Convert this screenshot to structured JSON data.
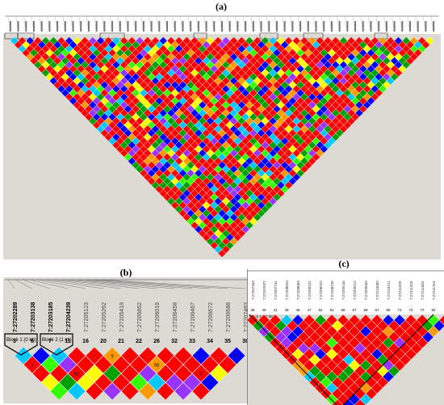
{
  "labels": {
    "a": "(a)",
    "b": "(b)",
    "c": "(c)"
  },
  "colors": {
    "background": "#ffffff",
    "panel_grey": "#dcdad3",
    "ld_red": "#ff0000",
    "ld_green": "#00a000",
    "ld_blue": "#0000ff",
    "ld_yellow": "#ffff00",
    "ld_cyan": "#00c8ff",
    "ld_orange": "#ff9900",
    "ld_lightgreen": "#33ff00",
    "ld_purple": "#9933ff"
  },
  "panel_b": {
    "bold_snps": [
      "7:27202289",
      "7:27203138",
      "7:27203185",
      "7:27204239"
    ],
    "snps": [
      "7:27205123",
      "7:27205262",
      "7:27205419",
      "7:27205852",
      "7:27206019",
      "7:27206458",
      "7:27206467",
      "7:27206672",
      "7:27206688",
      "7:27207463"
    ],
    "blocks": [
      "Block 1 (0 kb)",
      "Block 2 (1 kb)"
    ],
    "marker_numbers": [
      "3",
      "6",
      "7",
      "11",
      "16",
      "20",
      "21",
      "22",
      "26",
      "32",
      "33",
      "34",
      "35",
      "38"
    ],
    "cell_values": [
      "9",
      "30",
      "1",
      "88",
      "58",
      "5"
    ]
  },
  "panel_c": {
    "block": "Block 3 (10 kb)",
    "snps": [
      "7:27207463",
      "7:27207627",
      "7:27207741",
      "7:27208010",
      "7:27208063",
      "7:27208221",
      "7:27208322",
      "7:27208725",
      "7:27209145",
      "7:27209212",
      "7:27209563",
      "7:27210082",
      "7:27210211",
      "7:27211025",
      "7:27211326",
      "7:27211582",
      "7:27211763"
    ],
    "marker_numbers": [
      "38",
      "40",
      "41",
      "45",
      "46",
      "47",
      "52",
      "54",
      "55",
      "57",
      "58",
      "67",
      "68",
      "73",
      "74",
      "77",
      "82"
    ]
  }
}
